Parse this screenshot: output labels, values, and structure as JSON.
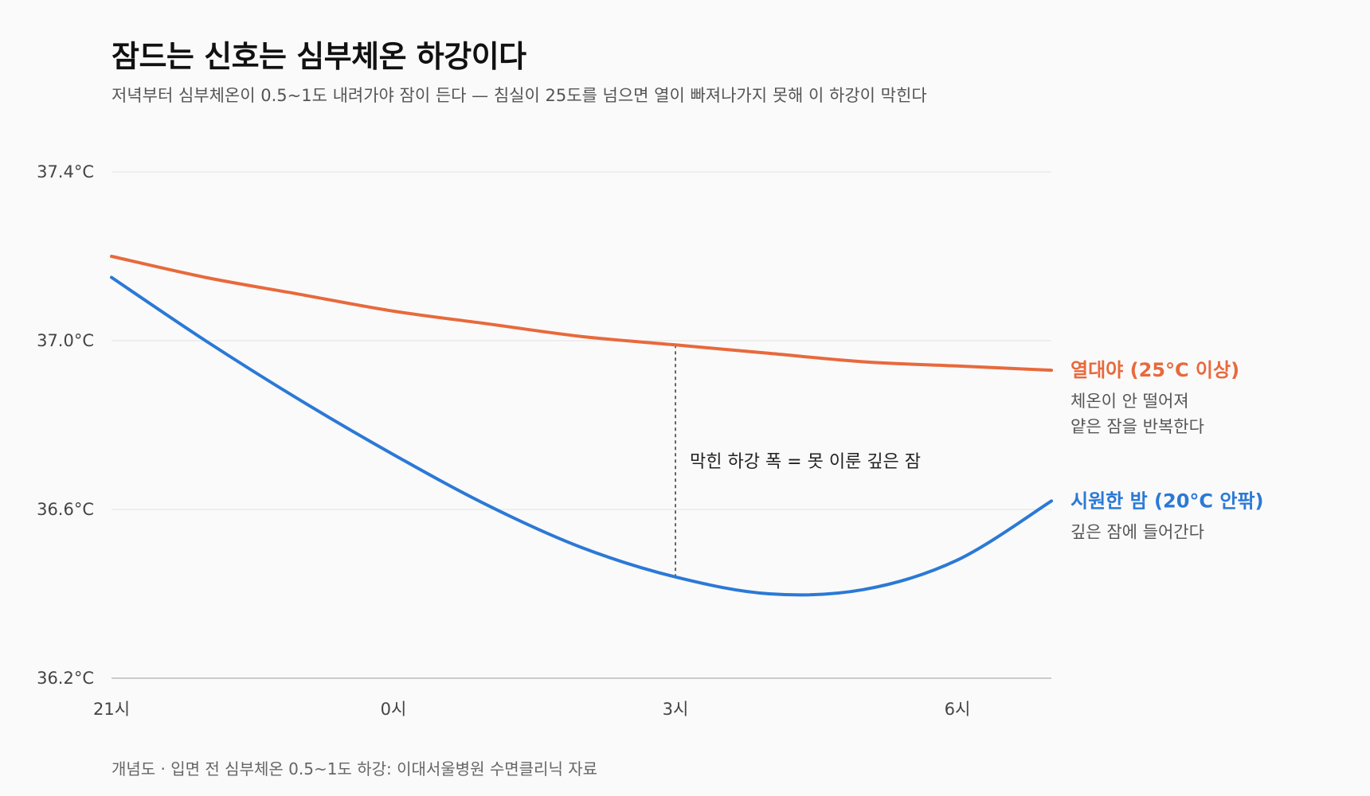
{
  "title": "잠드는 신호는 심부체온 하강이다",
  "subtitle": "저녁부터 심부체온이 0.5~1도 내려가야 잠이 든다 — 침실이 25도를 넘으면 열이 빠져나가지 못해 이 하강이 막힌다",
  "footnote": "개념도 · 입면 전 심부체온 0.5~1도 하강: 이대서울병원 수면클리닉 자료",
  "chart_data": {
    "type": "line",
    "x_tick_labels": [
      "21시",
      "0시",
      "3시",
      "6시"
    ],
    "x_tick_values": [
      21,
      24,
      27,
      30
    ],
    "xlim": [
      21,
      31
    ],
    "y_tick_labels": [
      "36.2°C",
      "36.6°C",
      "37.0°C",
      "37.4°C"
    ],
    "y_tick_values": [
      36.2,
      36.6,
      37.0,
      37.4
    ],
    "ylim": [
      36.2,
      37.4
    ],
    "grid": true,
    "series": [
      {
        "name": "열대야 (25°C 이상)",
        "description": [
          "체온이 안 떨어져",
          "얕은 잠을 반복한다"
        ],
        "color": "#e8693c",
        "x": [
          21,
          22,
          23,
          24,
          25,
          26,
          27,
          28,
          29,
          30,
          31
        ],
        "y": [
          37.2,
          37.15,
          37.11,
          37.07,
          37.04,
          37.01,
          36.99,
          36.97,
          36.95,
          36.94,
          36.93
        ]
      },
      {
        "name": "시원한 밤 (20°C 안팎)",
        "description": [
          "깊은 잠에 들어간다"
        ],
        "color": "#2b79d6",
        "x": [
          21,
          22,
          23,
          24,
          25,
          26,
          27,
          28,
          29,
          30,
          31
        ],
        "y": [
          37.15,
          37.0,
          36.86,
          36.73,
          36.61,
          36.51,
          36.44,
          36.4,
          36.41,
          36.48,
          36.62
        ]
      }
    ],
    "annotation": {
      "text": "막힌 하강 폭 = 못 이룬 깊은 잠",
      "x": 27,
      "y_top": 36.99,
      "y_bottom": 36.44
    }
  }
}
